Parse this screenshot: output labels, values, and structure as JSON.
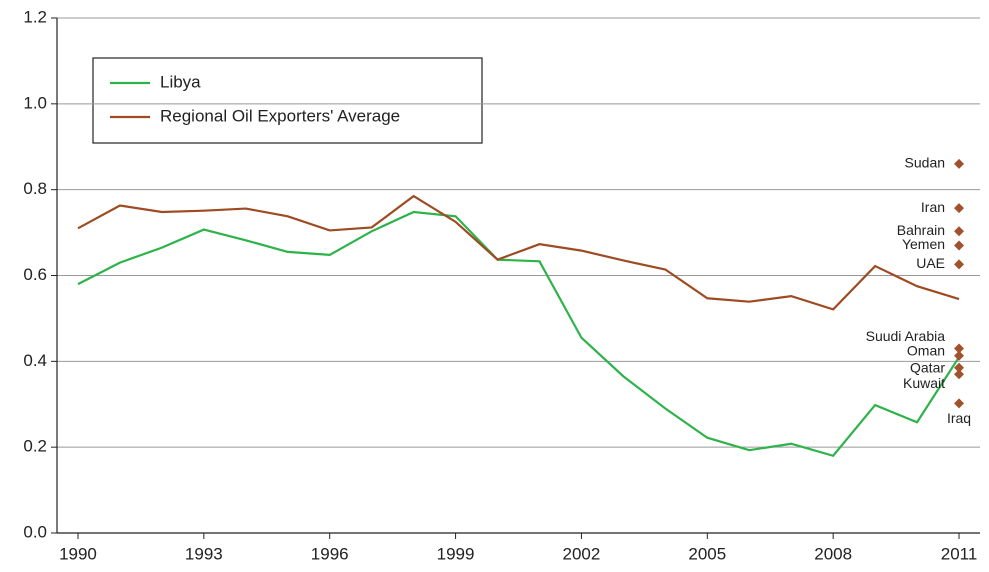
{
  "chart_data": {
    "type": "line",
    "x": [
      1990,
      1991,
      1992,
      1993,
      1994,
      1995,
      1996,
      1997,
      1998,
      1999,
      2000,
      2001,
      2002,
      2003,
      2004,
      2005,
      2006,
      2007,
      2008,
      2009,
      2010,
      2011
    ],
    "series": [
      {
        "name": "Libya",
        "color": "#2db34a",
        "values": [
          0.58,
          0.63,
          0.665,
          0.707,
          0.682,
          0.655,
          0.648,
          0.703,
          0.748,
          0.738,
          0.637,
          0.633,
          0.455,
          0.365,
          0.29,
          0.222,
          0.193,
          0.208,
          0.18,
          0.298,
          0.258,
          0.41
        ]
      },
      {
        "name": "Regional Oil Exporters' Average",
        "color": "#9e4b22",
        "values": [
          0.71,
          0.763,
          0.748,
          0.751,
          0.756,
          0.738,
          0.705,
          0.712,
          0.785,
          0.725,
          0.637,
          0.673,
          0.658,
          0.635,
          0.614,
          0.547,
          0.539,
          0.552,
          0.521,
          0.622,
          0.575,
          0.545
        ]
      }
    ],
    "markers": {
      "color": "#a0522d",
      "x": 2011,
      "points": [
        {
          "label": "Sudan",
          "value": 0.86
        },
        {
          "label": "Iran",
          "value": 0.757
        },
        {
          "label": "Bahrain",
          "value": 0.703
        },
        {
          "label": "Yemen",
          "value": 0.67
        },
        {
          "label": "UAE",
          "value": 0.626
        },
        {
          "label": "Suudi Arabia",
          "value": 0.43
        },
        {
          "label": "Oman",
          "value": 0.413
        },
        {
          "label": "Qatar",
          "value": 0.385
        },
        {
          "label": "Kuwait",
          "value": 0.37
        },
        {
          "label": "Iraq",
          "value": 0.302
        }
      ]
    },
    "xlim": [
      1989.5,
      2011.5
    ],
    "xticks": [
      1990,
      1993,
      1996,
      1999,
      2002,
      2005,
      2008,
      2011
    ],
    "ylim": [
      0,
      1.2
    ],
    "yticks": [
      {
        "value": 0,
        "label": "0.0"
      },
      0.2,
      0.4,
      0.6,
      0.8,
      {
        "value": 1,
        "label": "1.0"
      },
      1.2
    ],
    "grid": true
  }
}
